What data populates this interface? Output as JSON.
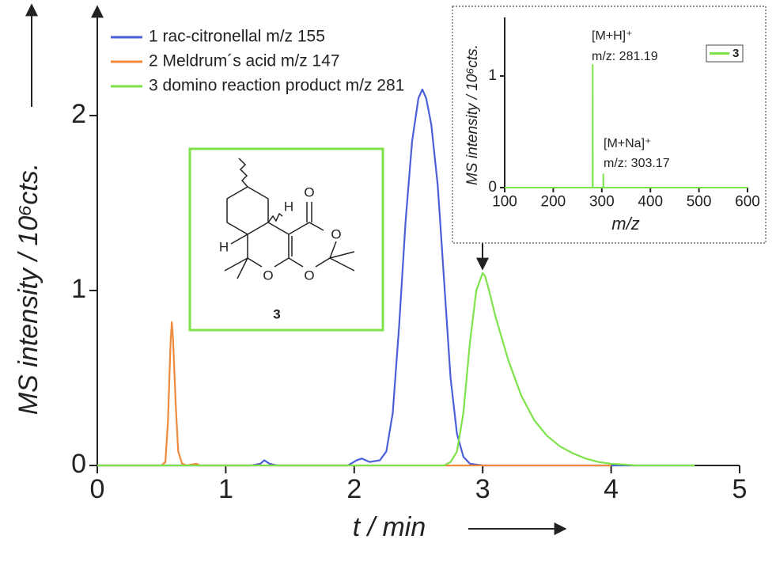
{
  "chart_data": [
    {
      "type": "line",
      "xlabel": "t / min",
      "ylabel": "MS intensity / 10⁶cts.",
      "xlim": [
        0,
        5
      ],
      "ylim": [
        0,
        2.5
      ],
      "xticks": [
        0,
        1,
        2,
        3,
        4,
        5
      ],
      "yticks": [
        0,
        1,
        2
      ],
      "legend": "upper left",
      "series": [
        {
          "name": "1 rac-citronellal m/z 155",
          "color": "#4a5fd8",
          "x": [
            0,
            1.2,
            1.27,
            1.3,
            1.34,
            1.4,
            1.95,
            2.02,
            2.06,
            2.12,
            2.2,
            2.25,
            2.3,
            2.35,
            2.4,
            2.45,
            2.5,
            2.53,
            2.56,
            2.6,
            2.65,
            2.7,
            2.75,
            2.8,
            2.85,
            2.9,
            3.0,
            4.0,
            4.65
          ],
          "values": [
            0,
            0,
            0.01,
            0.03,
            0.01,
            0,
            0,
            0.03,
            0.04,
            0.02,
            0.03,
            0.08,
            0.3,
            0.8,
            1.4,
            1.85,
            2.1,
            2.15,
            2.1,
            1.95,
            1.6,
            1.05,
            0.5,
            0.18,
            0.05,
            0.01,
            0,
            0,
            0
          ]
        },
        {
          "name": "2 Meldrum´s acid m/z 147",
          "color": "#f08a3c",
          "x": [
            0,
            0.5,
            0.53,
            0.55,
            0.57,
            0.58,
            0.59,
            0.61,
            0.63,
            0.66,
            0.7,
            0.77,
            0.8,
            1.5,
            2.5,
            3.5,
            4.0
          ],
          "values": [
            0,
            0,
            0.02,
            0.25,
            0.7,
            0.82,
            0.72,
            0.35,
            0.08,
            0.01,
            0,
            0.01,
            0,
            0,
            0,
            0,
            0
          ]
        },
        {
          "name": "3 domino reaction product m/z 281",
          "color": "#7ee24a",
          "x": [
            0,
            2.7,
            2.75,
            2.8,
            2.85,
            2.9,
            2.95,
            3.0,
            3.02,
            3.05,
            3.1,
            3.2,
            3.3,
            3.4,
            3.5,
            3.6,
            3.7,
            3.8,
            3.9,
            4.0,
            4.2,
            4.65
          ],
          "values": [
            0,
            0,
            0.02,
            0.08,
            0.3,
            0.7,
            1.0,
            1.1,
            1.08,
            1.0,
            0.85,
            0.6,
            0.4,
            0.26,
            0.17,
            0.11,
            0.07,
            0.04,
            0.02,
            0.01,
            0,
            0
          ]
        }
      ],
      "structure": {
        "atoms": [
          "O",
          "O",
          "O",
          "O",
          "H",
          "H"
        ],
        "label": "3"
      }
    },
    {
      "type": "line",
      "xlabel": "m/z",
      "ylabel": "MS intensity / 10⁶cts.",
      "xlim": [
        100,
        600
      ],
      "ylim": [
        0,
        1.5
      ],
      "xticks": [
        100,
        200,
        300,
        400,
        500,
        600
      ],
      "yticks": [
        0,
        1
      ],
      "legend": "upper right",
      "series": [
        {
          "name": "3",
          "color": "#7ee24a",
          "x": [
            100,
            280.9,
            281.19,
            281.5,
            302.9,
            303.17,
            303.5,
            600
          ],
          "values": [
            0,
            0,
            1.1,
            0,
            0,
            0.12,
            0,
            0
          ]
        }
      ],
      "annotations": [
        "[M+H]⁺",
        "m/z: 281.19",
        "[M+Na]⁺",
        "m/z: 303.17"
      ]
    }
  ]
}
